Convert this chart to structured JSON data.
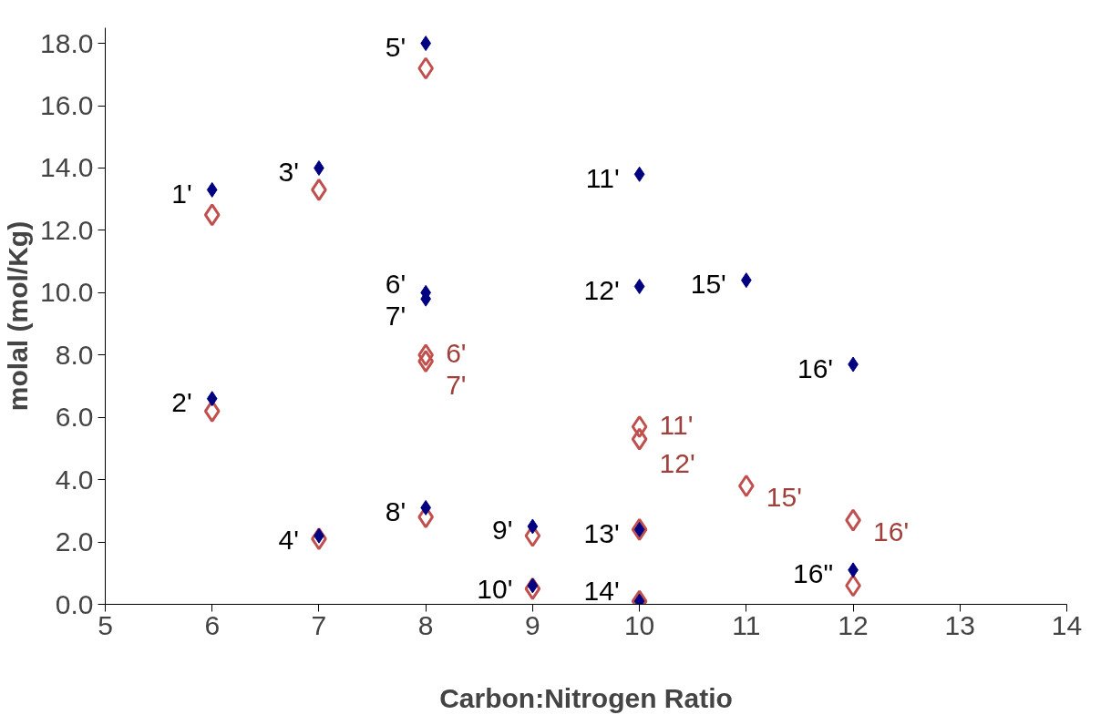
{
  "chart_data": {
    "type": "scatter",
    "xlabel": "Carbon:Nitrogen Ratio",
    "ylabel": "molal (mol/Kg)",
    "xlim": [
      5,
      14
    ],
    "ylim": [
      0,
      18.5
    ],
    "xticks": [
      5,
      6,
      7,
      8,
      9,
      10,
      11,
      12,
      13,
      14
    ],
    "yticks": [
      {
        "value": 0,
        "label": "0.0"
      },
      {
        "value": 2,
        "label": "2.0"
      },
      {
        "value": 4,
        "label": "4.0"
      },
      {
        "value": 6,
        "label": "6.0"
      },
      {
        "value": 8,
        "label": "8.0"
      },
      {
        "value": 10,
        "label": "10.0"
      },
      {
        "value": 12,
        "label": "12.0"
      },
      {
        "value": 14,
        "label": "14.0"
      },
      {
        "value": 16,
        "label": "16.0"
      },
      {
        "value": 18,
        "label": "18.0"
      }
    ],
    "grid": false,
    "marker": "diamond",
    "series": [
      {
        "color": "#000080",
        "x": [
          6,
          6,
          7,
          7,
          8,
          8,
          8,
          8,
          9,
          9,
          10,
          10,
          10,
          10,
          11,
          12,
          12
        ],
        "values": [
          13.3,
          6.6,
          14.0,
          2.2,
          18.0,
          10.0,
          9.8,
          3.1,
          2.5,
          0.6,
          13.8,
          10.2,
          2.4,
          0.1,
          10.4,
          7.7,
          1.1
        ]
      },
      {
        "color": "#c0504d",
        "x": [
          6,
          6,
          7,
          7,
          8,
          8,
          8,
          8,
          9,
          9,
          10,
          10,
          10,
          10,
          11,
          12,
          12
        ],
        "values": [
          12.5,
          6.2,
          13.3,
          2.1,
          17.2,
          8.0,
          7.8,
          2.8,
          2.2,
          0.5,
          5.7,
          5.3,
          2.4,
          0.1,
          3.8,
          2.7,
          0.6
        ]
      }
    ],
    "annotations": [
      {
        "text": "1'",
        "x": 6,
        "y": 13.3
      },
      {
        "text": "2'",
        "x": 6,
        "y": 6.6
      },
      {
        "text": "3'",
        "x": 7,
        "y": 14.0
      },
      {
        "text": "4'",
        "x": 7,
        "y": 2.2
      },
      {
        "text": "5'",
        "x": 8,
        "y": 18.0
      },
      {
        "text": "6'",
        "x": 8,
        "y": 10.0
      },
      {
        "text": "7'",
        "x": 8,
        "y": 9.8
      },
      {
        "text": "8'",
        "x": 8,
        "y": 3.1
      },
      {
        "text": "9'",
        "x": 9,
        "y": 2.5
      },
      {
        "text": "10'",
        "x": 9,
        "y": 0.6
      },
      {
        "text": "11'",
        "x": 10,
        "y": 13.8
      },
      {
        "text": "12'",
        "x": 10,
        "y": 10.2
      },
      {
        "text": "13'",
        "x": 10,
        "y": 2.4
      },
      {
        "text": "14'",
        "x": 10,
        "y": 0.1
      },
      {
        "text": "15'",
        "x": 11,
        "y": 10.4
      },
      {
        "text": "16'",
        "x": 12,
        "y": 7.7
      },
      {
        "text": "16\"",
        "x": 12,
        "y": 1.1
      },
      {
        "text": "6'",
        "x": 8,
        "y": 8.0
      },
      {
        "text": "7'",
        "x": 8,
        "y": 7.8
      },
      {
        "text": "11'",
        "x": 10,
        "y": 5.7
      },
      {
        "text": "12'",
        "x": 10,
        "y": 5.3
      },
      {
        "text": "15'",
        "x": 11,
        "y": 3.8
      },
      {
        "text": "16'",
        "x": 12,
        "y": 2.7
      }
    ]
  }
}
